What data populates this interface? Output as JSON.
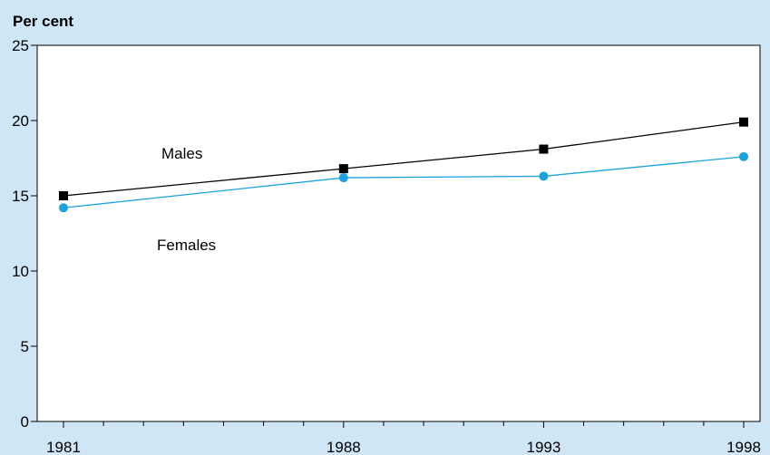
{
  "chart_data": {
    "type": "line",
    "title": "",
    "ylabel": "Per cent",
    "xlabel": "",
    "x": [
      1981,
      1988,
      1993,
      1998
    ],
    "xlim": [
      1981,
      1998
    ],
    "ylim": [
      0,
      25
    ],
    "yticks": [
      0,
      5,
      10,
      15,
      20,
      25
    ],
    "xtick_labels": [
      "1981",
      "1988",
      "1993",
      "1998"
    ],
    "grid": false,
    "series": [
      {
        "name": "Males",
        "values": [
          15.0,
          16.8,
          18.1,
          19.9
        ],
        "color": "#000000",
        "marker": "square"
      },
      {
        "name": "Females",
        "values": [
          14.2,
          16.2,
          16.3,
          17.6
        ],
        "color": "#1ba3dd",
        "marker": "circle"
      }
    ]
  },
  "colors": {
    "background": "#cfe6f7",
    "plot_area": "#ffffff"
  }
}
